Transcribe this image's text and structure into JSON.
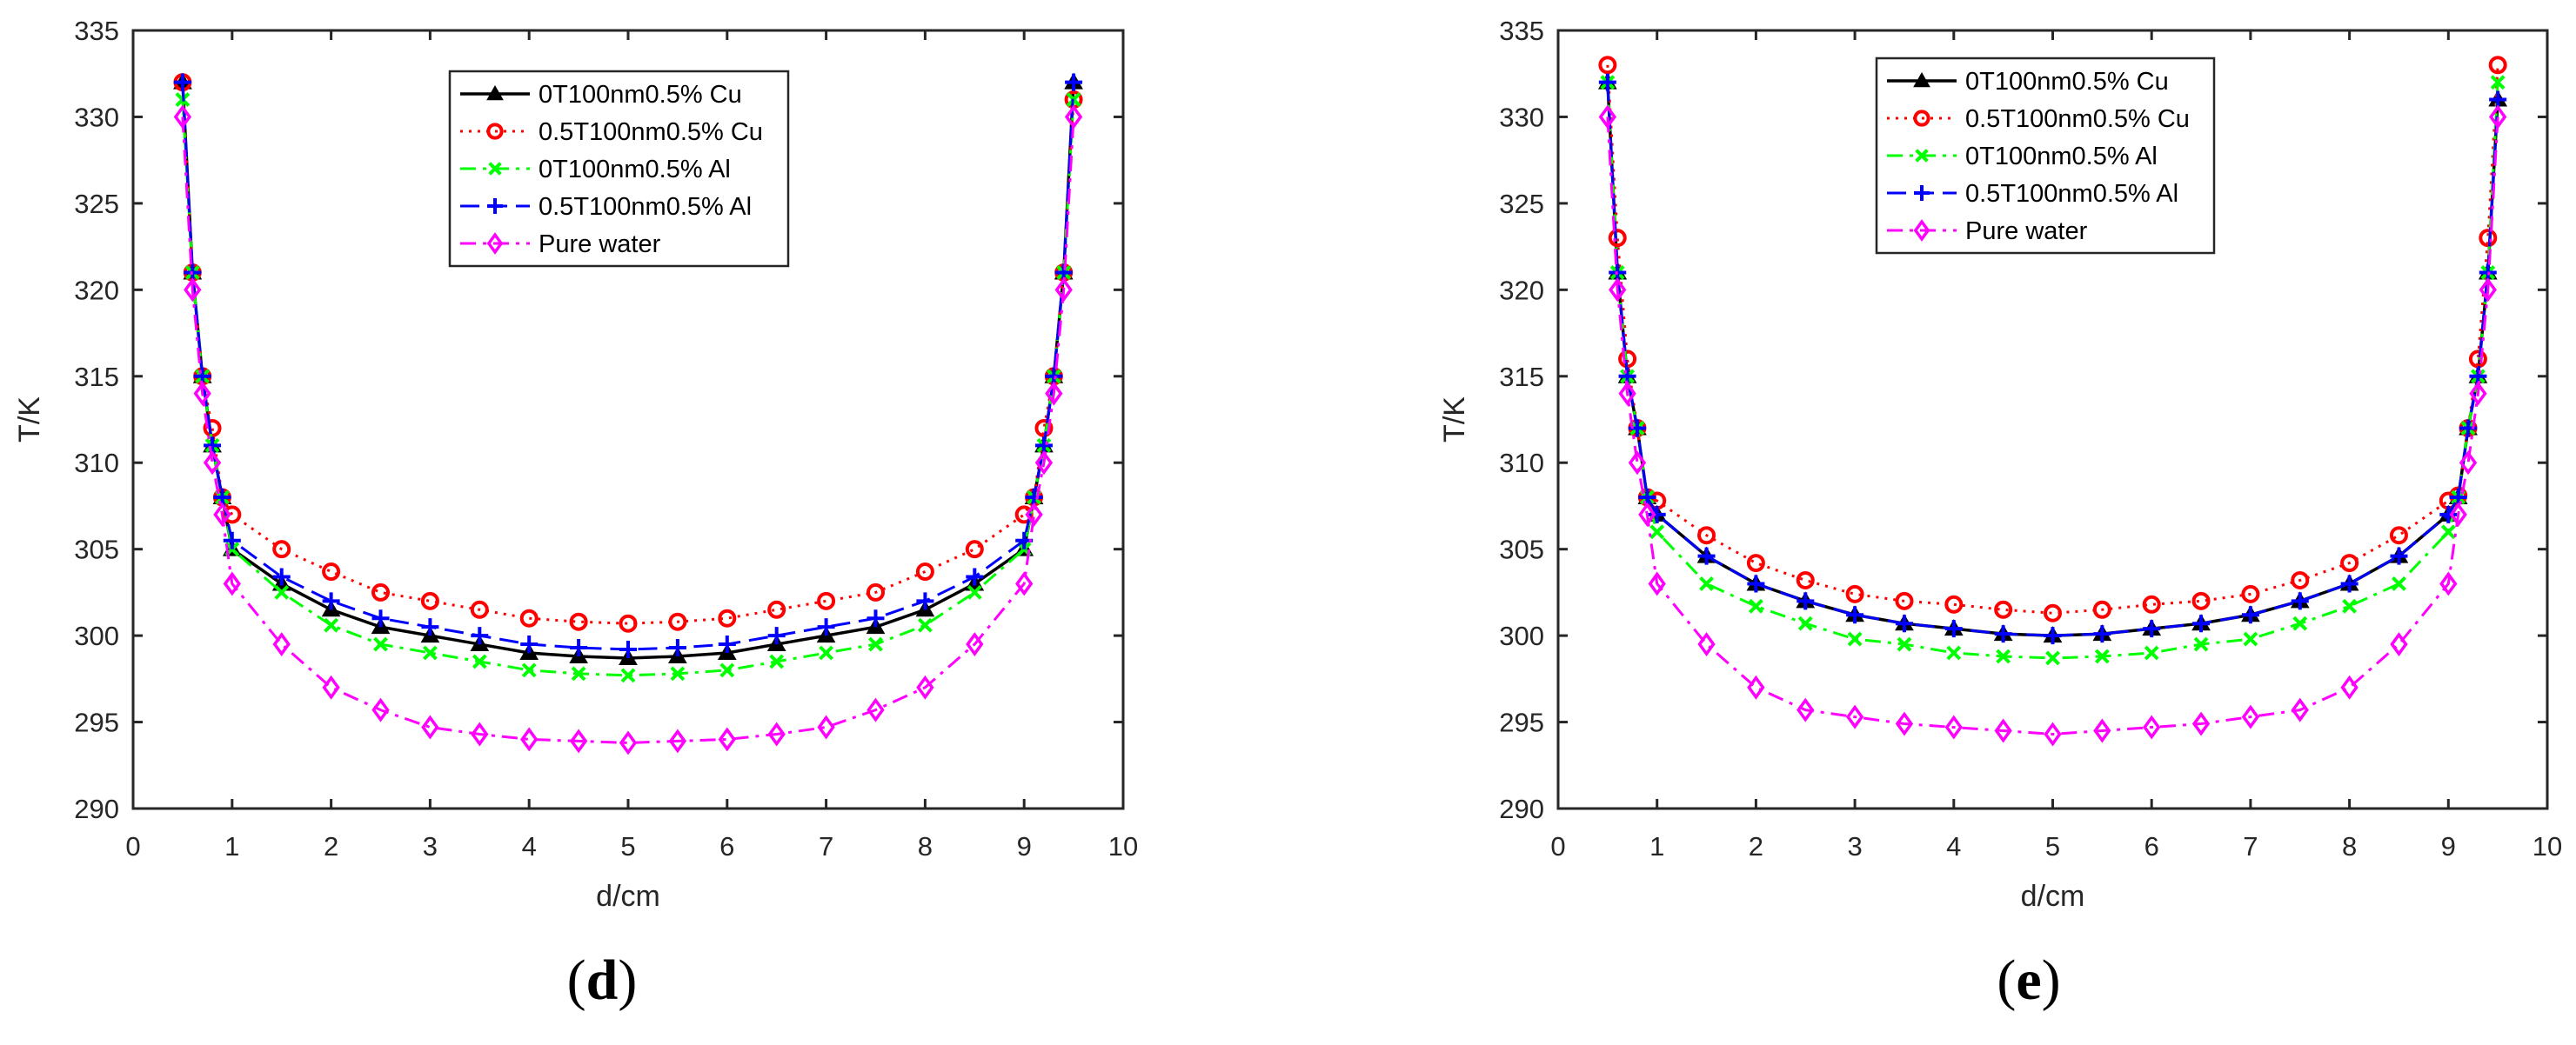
{
  "figure": {
    "panels": [
      {
        "caption": "(d)",
        "caption_letter": "d"
      },
      {
        "caption": "(e)",
        "caption_letter": "e"
      }
    ]
  },
  "chart_data": [
    {
      "type": "line",
      "panel": "(d)",
      "title": "",
      "xlabel": "d/cm",
      "ylabel": "T/K",
      "xlim": [
        0,
        10
      ],
      "ylim": [
        290,
        335
      ],
      "xticks": [
        0,
        1,
        2,
        3,
        4,
        5,
        6,
        7,
        8,
        9,
        10
      ],
      "yticks": [
        290,
        295,
        300,
        305,
        310,
        315,
        320,
        325,
        330,
        335
      ],
      "grid": false,
      "legend_position": "upper center",
      "x": [
        0.5,
        0.6,
        0.7,
        0.8,
        0.9,
        1,
        1.5,
        2,
        2.5,
        3,
        3.5,
        4,
        4.5,
        5,
        5.5,
        6,
        6.5,
        7,
        7.5,
        8,
        8.5,
        9,
        9.1,
        9.2,
        9.3,
        9.4,
        9.5
      ],
      "series": [
        {
          "name": "0T100nm0.5% Cu",
          "color": "#000000",
          "line": "solid",
          "marker": "triangle",
          "values": [
            332,
            321,
            315,
            311,
            308,
            305,
            303,
            301.5,
            300.5,
            300,
            299.5,
            299,
            298.8,
            298.7,
            298.8,
            299,
            299.5,
            300,
            300.5,
            301.5,
            303,
            305,
            308,
            311,
            315,
            321,
            332
          ]
        },
        {
          "name": "0.5T100nm0.5% Cu",
          "color": "#ff0000",
          "line": "dotted",
          "marker": "circle",
          "values": [
            332,
            321,
            315,
            312,
            308,
            307,
            305,
            303.7,
            302.5,
            302,
            301.5,
            301,
            300.8,
            300.7,
            300.8,
            301,
            301.5,
            302,
            302.5,
            303.7,
            305,
            307,
            308,
            312,
            315,
            321,
            331
          ]
        },
        {
          "name": "0T100nm0.5% Al",
          "color": "#00ff00",
          "line": "dashdot",
          "marker": "x",
          "values": [
            331,
            321,
            315,
            311,
            308,
            305,
            302.5,
            300.6,
            299.5,
            299,
            298.5,
            298,
            297.8,
            297.7,
            297.8,
            298,
            298.5,
            299,
            299.5,
            300.6,
            302.5,
            305,
            308,
            311,
            315,
            321,
            331
          ]
        },
        {
          "name": "0.5T100nm0.5% Al",
          "color": "#0000ff",
          "line": "dashed",
          "marker": "plus",
          "values": [
            332,
            321,
            315,
            311,
            308,
            305.5,
            303.4,
            302,
            301,
            300.5,
            300,
            299.5,
            299.3,
            299.2,
            299.3,
            299.5,
            300,
            300.5,
            301,
            302,
            303.4,
            305.5,
            308,
            311,
            315,
            321,
            332
          ]
        },
        {
          "name": "Pure water",
          "color": "#ff00ff",
          "line": "dashdot",
          "marker": "diamond",
          "values": [
            330,
            320,
            314,
            310,
            307,
            303,
            299.5,
            297,
            295.7,
            294.7,
            294.3,
            294,
            293.9,
            293.8,
            293.9,
            294,
            294.3,
            294.7,
            295.7,
            297,
            299.5,
            303,
            307,
            310,
            314,
            320,
            330
          ]
        }
      ]
    },
    {
      "type": "line",
      "panel": "(e)",
      "title": "",
      "xlabel": "d/cm",
      "ylabel": "T/K",
      "xlim": [
        0,
        10
      ],
      "ylim": [
        290,
        335
      ],
      "xticks": [
        0,
        1,
        2,
        3,
        4,
        5,
        6,
        7,
        8,
        9,
        10
      ],
      "yticks": [
        290,
        295,
        300,
        305,
        310,
        315,
        320,
        325,
        330,
        335
      ],
      "grid": false,
      "legend_position": "upper left",
      "x": [
        0.5,
        0.6,
        0.7,
        0.8,
        0.9,
        1,
        1.5,
        2,
        2.5,
        3,
        3.5,
        4,
        4.5,
        5,
        5.5,
        6,
        6.5,
        7,
        7.5,
        8,
        8.5,
        9,
        9.1,
        9.2,
        9.3,
        9.4,
        9.5
      ],
      "series": [
        {
          "name": "0T100nm0.5% Cu",
          "color": "#000000",
          "line": "solid",
          "marker": "triangle",
          "values": [
            332,
            321,
            315,
            312,
            308,
            307,
            304.6,
            303,
            302,
            301.2,
            300.7,
            300.4,
            300.1,
            300,
            300.1,
            300.4,
            300.7,
            301.2,
            302,
            303,
            304.6,
            307,
            308,
            312,
            315,
            321,
            331
          ]
        },
        {
          "name": "0.5T100nm0.5% Cu",
          "color": "#ff0000",
          "line": "dotted",
          "marker": "circle",
          "values": [
            333,
            323,
            316,
            312,
            308,
            307.8,
            305.8,
            304.2,
            303.2,
            302.4,
            302,
            301.8,
            301.5,
            301.3,
            301.5,
            301.8,
            302,
            302.4,
            303.2,
            304.2,
            305.8,
            307.8,
            308.1,
            312,
            316,
            323,
            333
          ]
        },
        {
          "name": "0T100nm0.5% Al",
          "color": "#00ff00",
          "line": "dashdot",
          "marker": "x",
          "values": [
            332,
            321,
            315,
            312,
            308,
            306,
            303,
            301.7,
            300.7,
            299.8,
            299.5,
            299,
            298.8,
            298.7,
            298.8,
            299,
            299.5,
            299.8,
            300.7,
            301.7,
            303,
            306,
            308,
            312,
            315,
            321,
            332
          ]
        },
        {
          "name": "0.5T100nm0.5% Al",
          "color": "#0000ff",
          "line": "dashed",
          "marker": "plus",
          "values": [
            332,
            321,
            315,
            312,
            308,
            307,
            304.6,
            303,
            302,
            301.2,
            300.7,
            300.4,
            300.1,
            300,
            300.1,
            300.4,
            300.7,
            301.2,
            302,
            303,
            304.6,
            307,
            308,
            312,
            315,
            321,
            331
          ]
        },
        {
          "name": "Pure water",
          "color": "#ff00ff",
          "line": "dashdot",
          "marker": "diamond",
          "values": [
            330,
            320,
            314,
            310,
            307,
            303,
            299.5,
            297,
            295.7,
            295.3,
            294.9,
            294.7,
            294.5,
            294.3,
            294.5,
            294.7,
            294.9,
            295.3,
            295.7,
            297,
            299.5,
            303,
            307,
            310,
            314,
            320,
            330
          ]
        }
      ]
    }
  ]
}
